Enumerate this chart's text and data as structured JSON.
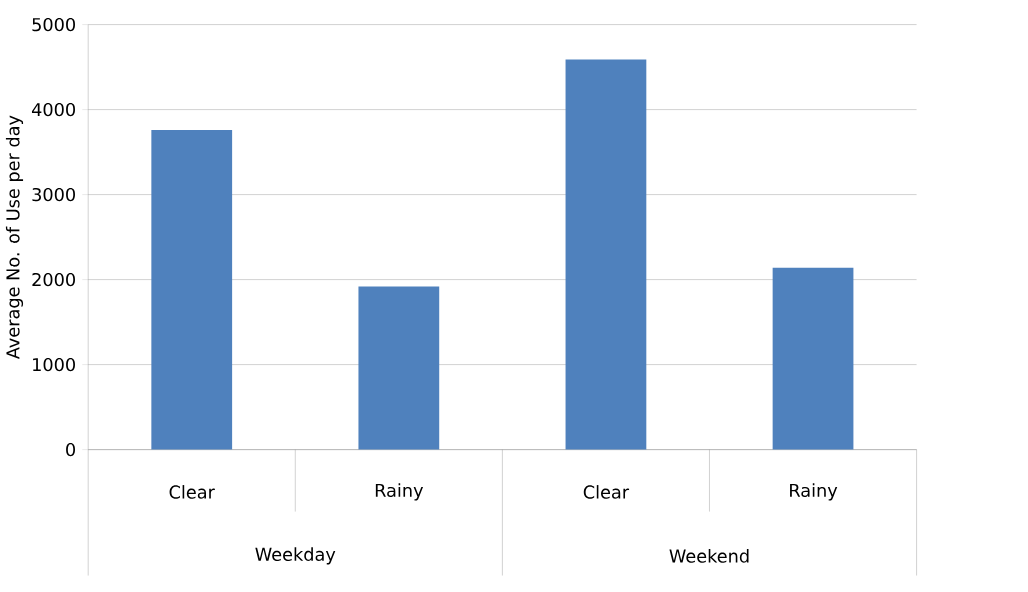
{
  "chart_data": {
    "type": "bar",
    "ylabel": "Average No. of Use per day",
    "categories": [
      "Clear",
      "Rainy",
      "Clear",
      "Rainy"
    ],
    "values": [
      3760,
      1920,
      4590,
      2140
    ],
    "color": "#4f81bd",
    "ylim": [
      0,
      5000
    ],
    "yticks": [
      0,
      1000,
      2000,
      3000,
      4000,
      5000
    ],
    "grid": "y",
    "annotations": [
      "Weekday",
      "Weekend"
    ]
  }
}
